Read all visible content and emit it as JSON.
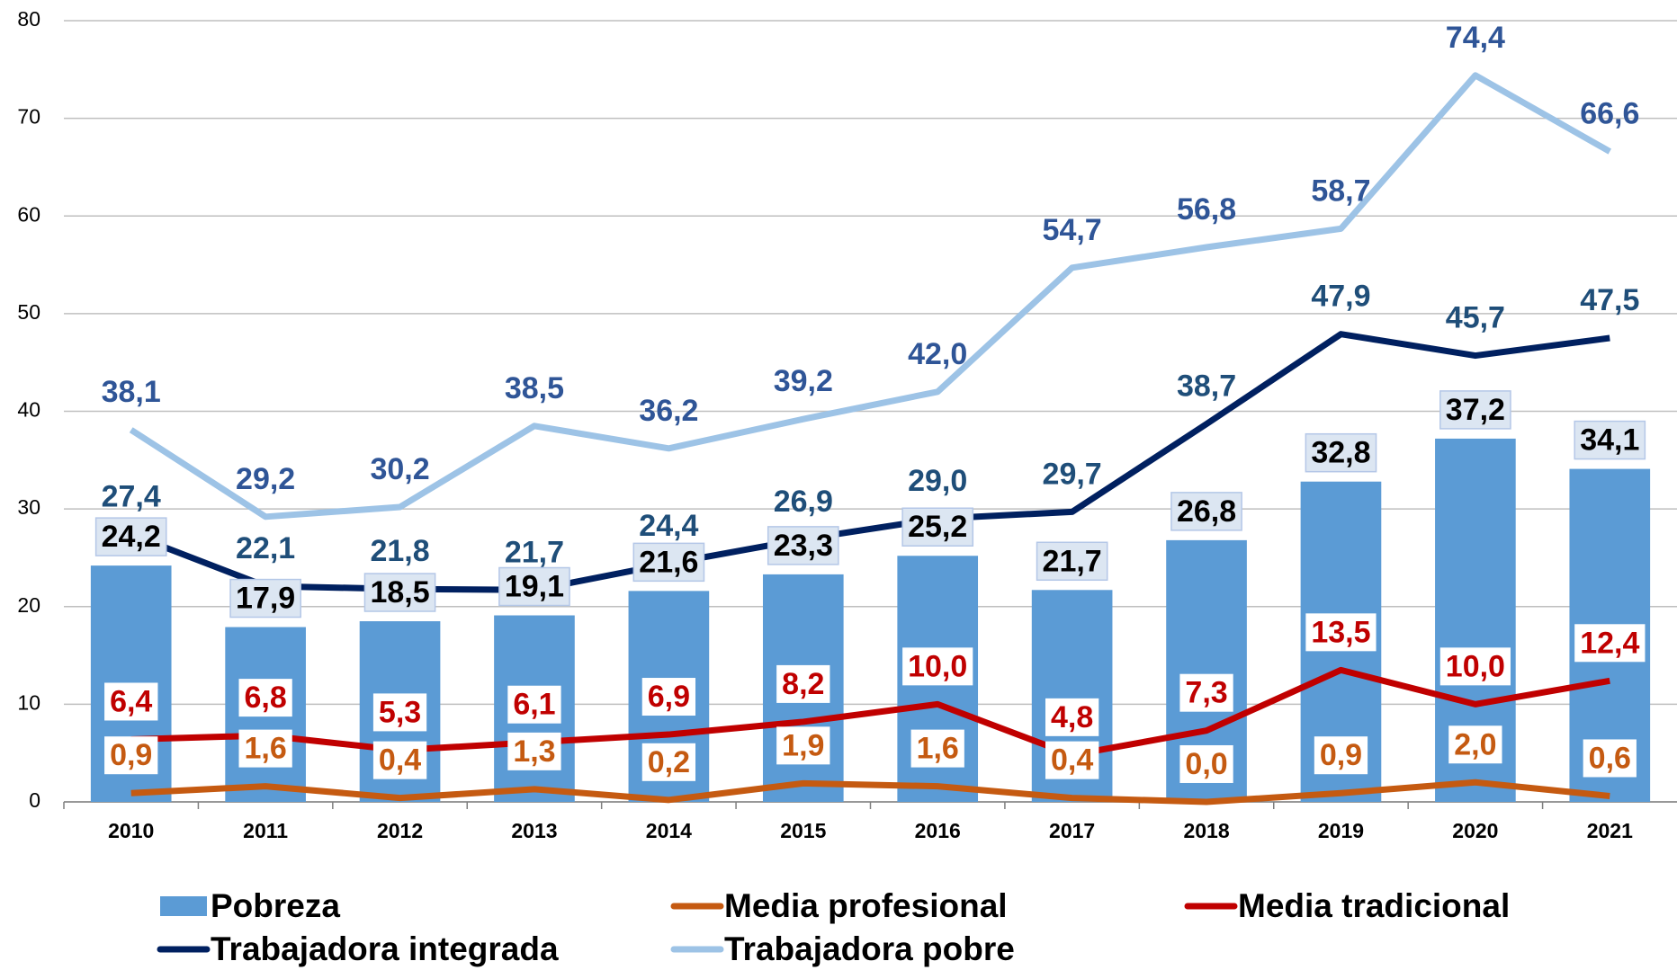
{
  "chart_data": {
    "type": "combo",
    "categories": [
      "2010",
      "2011",
      "2012",
      "2013",
      "2014",
      "2015",
      "2016",
      "2017",
      "2018",
      "2019",
      "2020",
      "2021"
    ],
    "ylim": [
      0,
      80
    ],
    "yticks": [
      0,
      10,
      20,
      30,
      40,
      50,
      60,
      70,
      80
    ],
    "grid": true,
    "legend": "bottom",
    "series": [
      {
        "name": "Pobreza",
        "kind": "bar",
        "color": "#5b9bd5",
        "label_color": "#000000",
        "values": [
          24.2,
          17.9,
          18.5,
          19.1,
          21.6,
          23.3,
          25.2,
          21.7,
          26.8,
          32.8,
          37.2,
          34.1
        ],
        "value_labels": [
          "24,2",
          "17,9",
          "18,5",
          "19,1",
          "21,6",
          "23,3",
          "25,2",
          "21,7",
          "26,8",
          "32,8",
          "37,2",
          "34,1"
        ]
      },
      {
        "name": "Media profesional",
        "kind": "line",
        "color": "#c55a11",
        "label_color": "#c55a11",
        "values": [
          0.9,
          1.6,
          0.4,
          1.3,
          0.2,
          1.9,
          1.6,
          0.4,
          0.0,
          0.9,
          2.0,
          0.6
        ],
        "value_labels": [
          "0,9",
          "1,6",
          "0,4",
          "1,3",
          "0,2",
          "1,9",
          "1,6",
          "0,4",
          "0,0",
          "0,9",
          "2,0",
          "0,6"
        ]
      },
      {
        "name": "Media tradicional",
        "kind": "line",
        "color": "#c00000",
        "label_color": "#c00000",
        "values": [
          6.4,
          6.8,
          5.3,
          6.1,
          6.9,
          8.2,
          10.0,
          4.8,
          7.3,
          13.5,
          10.0,
          12.4
        ],
        "value_labels": [
          "6,4",
          "6,8",
          "5,3",
          "6,1",
          "6,9",
          "8,2",
          "10,0",
          "4,8",
          "7,3",
          "13,5",
          "10,0",
          "12,4"
        ]
      },
      {
        "name": "Trabajadora integrada",
        "kind": "line",
        "color": "#002060",
        "label_color": "#1f4e79",
        "values": [
          27.4,
          22.1,
          21.8,
          21.7,
          24.4,
          26.9,
          29.0,
          29.7,
          38.7,
          47.9,
          45.7,
          47.5
        ],
        "value_labels": [
          "27,4",
          "22,1",
          "21,8",
          "21,7",
          "24,4",
          "26,9",
          "29,0",
          "29,7",
          "38,7",
          "47,9",
          "45,7",
          "47,5"
        ]
      },
      {
        "name": "Trabajadora pobre",
        "kind": "line",
        "color": "#9dc3e6",
        "label_color": "#2f5597",
        "values": [
          38.1,
          29.2,
          30.2,
          38.5,
          36.2,
          39.2,
          42.0,
          54.7,
          56.8,
          58.7,
          74.4,
          66.6
        ],
        "value_labels": [
          "38,1",
          "29,2",
          "30,2",
          "38,5",
          "36,2",
          "39,2",
          "42,0",
          "54,7",
          "56,8",
          "58,7",
          "74,4",
          "66,6"
        ]
      }
    ]
  }
}
